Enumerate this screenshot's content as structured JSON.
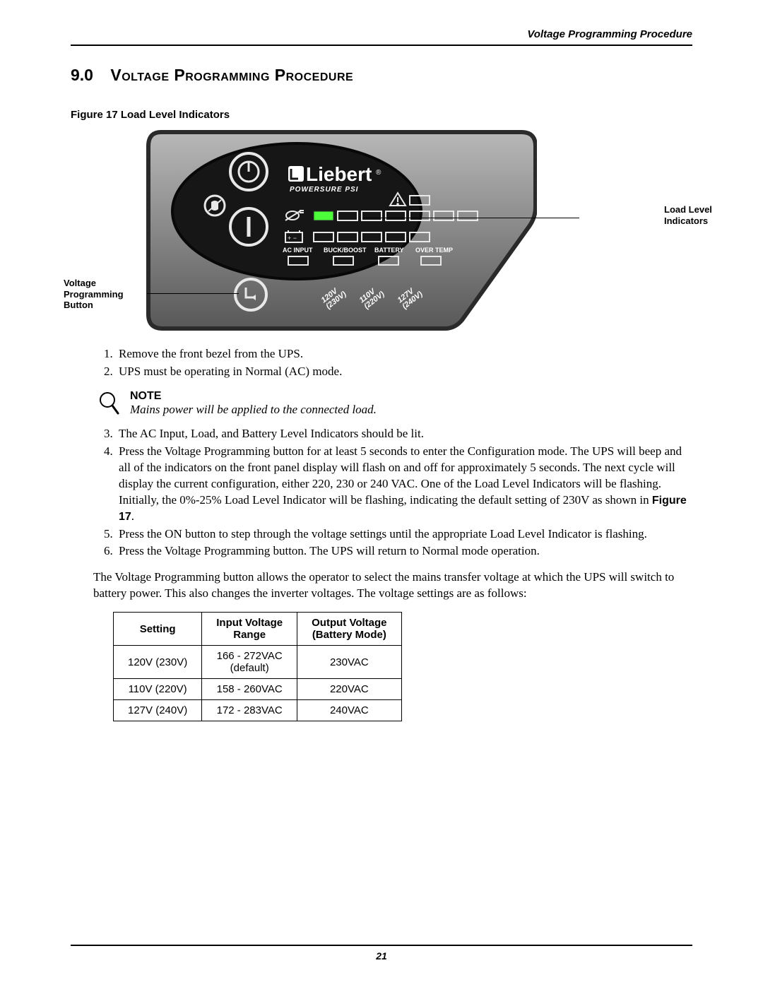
{
  "header": {
    "right": "Voltage Programming Procedure"
  },
  "section": {
    "number": "9.0",
    "title_smallcaps": "Voltage Programming Procedure"
  },
  "figure": {
    "caption": "Figure 17  Load Level Indicators",
    "callout_left_l1": "Voltage",
    "callout_left_l2": "Programming",
    "callout_left_l3": "Button",
    "callout_right_l1": "Load Level",
    "callout_right_l2": "Indicators",
    "brand_top": "Liebert",
    "brand_sub": "POWERSURE PSI",
    "label_ac": "AC INPUT",
    "label_bb": "BUCK/BOOST",
    "label_batt": "BATTERY",
    "label_ot": "OVER TEMP",
    "v1a": "120V",
    "v1b": "(230V)",
    "v2a": "110V",
    "v2b": "(220V)",
    "v3a": "127V",
    "v3b": "(240V)",
    "colors": {
      "panel_outer_top": "#b0b0b0",
      "panel_outer_bot": "#5a5a5a",
      "panel_oval": "#1a1a1a",
      "led_on": "#4cff3a",
      "ring": "#e8e8e8"
    }
  },
  "steps_a": [
    "Remove the front bezel from the UPS.",
    "UPS must be operating in Normal (AC) mode."
  ],
  "note": {
    "title": "NOTE",
    "text": "Mains power will be applied to the connected load."
  },
  "steps_b": [
    "The AC Input, Load, and Battery Level Indicators should be lit.",
    "Press the Voltage Programming button for at least 5 seconds to enter the Configuration mode. The UPS will beep and all of the indicators on the front panel display will flash on and off for approximately 5 seconds. The next cycle will display the current configuration, either 220, 230 or 240 VAC. One of the Load Level Indicators will be flashing. Initially, the 0%-25% Load Level Indicator will be flashing, indicating the default setting of 230V as shown in ",
    "Press the ON button to step through the voltage settings until the appropriate Load Level Indicator is flashing.",
    "Press the Voltage Programming button. The UPS will return to Normal mode operation."
  ],
  "fig_ref": "Figure 17",
  "paragraph": "The Voltage Programming button allows the operator to select the mains transfer voltage at which the UPS will switch to battery power. This also changes the inverter voltages. The voltage settings are as follows:",
  "table": {
    "headers": [
      "Setting",
      "Input Voltage\nRange",
      "Output Voltage\n(Battery Mode)"
    ],
    "rows": [
      [
        "120V (230V)",
        "166 - 272VAC\n(default)",
        "230VAC"
      ],
      [
        "110V (220V)",
        "158 - 260VAC",
        "220VAC"
      ],
      [
        "127V (240V)",
        "172 - 283VAC",
        "240VAC"
      ]
    ]
  },
  "page_number": "21"
}
